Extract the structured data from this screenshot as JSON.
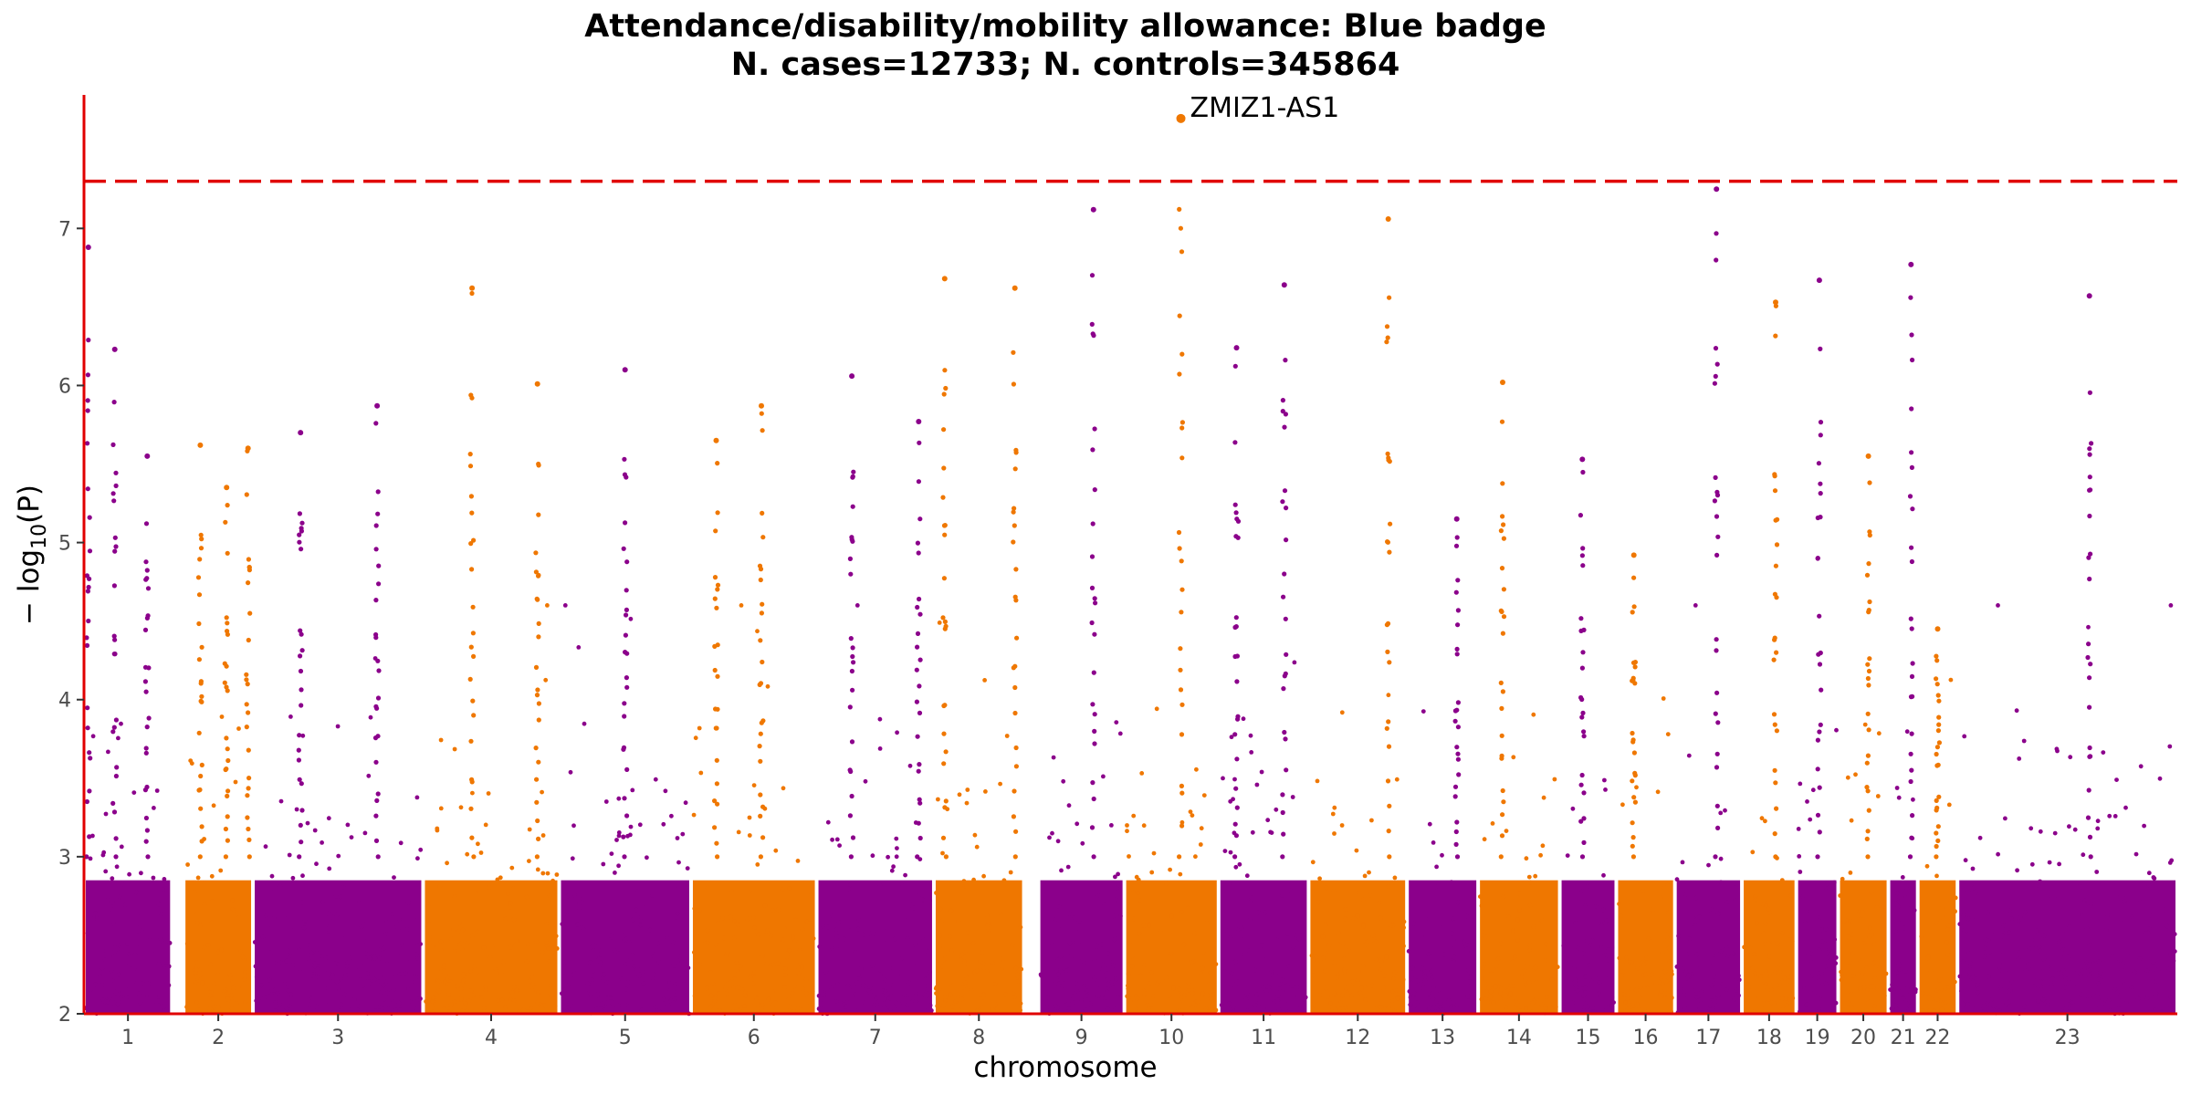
{
  "chart_data": {
    "type": "scatter",
    "subtype": "manhattan",
    "title": "Attendance/disability/mobility allowance: Blue badge",
    "subtitle": "N. cases=12733; N. controls=345864",
    "xlabel": "chromosome",
    "ylabel_main": "− log",
    "ylabel_sub": "10",
    "ylabel_tail": "(P)",
    "ylim": [
      2,
      7.85
    ],
    "y_ticks": [
      "2",
      "3",
      "4",
      "5",
      "6",
      "7"
    ],
    "threshold": 7.3,
    "series_colors": [
      "#8b008b",
      "#ef7700"
    ],
    "axis_color": "#e00000",
    "threshold_color": "#e00000",
    "chromosomes": [
      {
        "label": "1",
        "start": 0.0,
        "end": 0.042,
        "gap_end": 0.0476
      },
      {
        "label": "2",
        "start": 0.0476,
        "end": 0.0807,
        "gap_end": 0.0807
      },
      {
        "label": "3",
        "start": 0.0807,
        "end": 0.162,
        "gap_end": 0.162
      },
      {
        "label": "4",
        "start": 0.162,
        "end": 0.227,
        "gap_end": 0.227
      },
      {
        "label": "5",
        "start": 0.227,
        "end": 0.29,
        "gap_end": 0.29
      },
      {
        "label": "6",
        "start": 0.29,
        "end": 0.35,
        "gap_end": 0.35
      },
      {
        "label": "7",
        "start": 0.35,
        "end": 0.406,
        "gap_end": 0.406
      },
      {
        "label": "8",
        "start": 0.406,
        "end": 0.449,
        "gap_end": 0.456
      },
      {
        "label": "9",
        "start": 0.456,
        "end": 0.497,
        "gap_end": 0.497
      },
      {
        "label": "10",
        "start": 0.497,
        "end": 0.542,
        "gap_end": 0.542
      },
      {
        "label": "11",
        "start": 0.542,
        "end": 0.585,
        "gap_end": 0.585
      },
      {
        "label": "12",
        "start": 0.585,
        "end": 0.632,
        "gap_end": 0.632
      },
      {
        "label": "13",
        "start": 0.632,
        "end": 0.666,
        "gap_end": 0.666
      },
      {
        "label": "14",
        "start": 0.666,
        "end": 0.705,
        "gap_end": 0.705
      },
      {
        "label": "15",
        "start": 0.705,
        "end": 0.732,
        "gap_end": 0.732
      },
      {
        "label": "16",
        "start": 0.732,
        "end": 0.76,
        "gap_end": 0.76
      },
      {
        "label": "17",
        "start": 0.76,
        "end": 0.792,
        "gap_end": 0.792
      },
      {
        "label": "18",
        "start": 0.792,
        "end": 0.818,
        "gap_end": 0.818
      },
      {
        "label": "19",
        "start": 0.818,
        "end": 0.838,
        "gap_end": 0.838
      },
      {
        "label": "20",
        "start": 0.838,
        "end": 0.862,
        "gap_end": 0.862
      },
      {
        "label": "21",
        "start": 0.862,
        "end": 0.876,
        "gap_end": 0.876
      },
      {
        "label": "22",
        "start": 0.876,
        "end": 0.895,
        "gap_end": 0.895
      },
      {
        "label": "23",
        "start": 0.895,
        "end": 1.0,
        "gap_end": 1.0
      }
    ],
    "peaks": [
      {
        "chrom": "1",
        "pos": 0.05,
        "p": 6.88
      },
      {
        "chrom": "1",
        "pos": 0.35,
        "p": 6.23
      },
      {
        "chrom": "1",
        "pos": 0.72,
        "p": 5.55
      },
      {
        "chrom": "2",
        "pos": 0.24,
        "p": 5.62
      },
      {
        "chrom": "2",
        "pos": 0.62,
        "p": 5.35
      },
      {
        "chrom": "2",
        "pos": 0.93,
        "p": 5.6
      },
      {
        "chrom": "3",
        "pos": 0.28,
        "p": 5.7
      },
      {
        "chrom": "3",
        "pos": 0.73,
        "p": 5.87
      },
      {
        "chrom": "4",
        "pos": 0.36,
        "p": 6.62
      },
      {
        "chrom": "4",
        "pos": 0.84,
        "p": 6.01
      },
      {
        "chrom": "5",
        "pos": 0.5,
        "p": 6.1
      },
      {
        "chrom": "6",
        "pos": 0.2,
        "p": 5.65
      },
      {
        "chrom": "6",
        "pos": 0.56,
        "p": 5.87
      },
      {
        "chrom": "7",
        "pos": 0.3,
        "p": 6.06
      },
      {
        "chrom": "7",
        "pos": 0.87,
        "p": 5.77
      },
      {
        "chrom": "8",
        "pos": 0.12,
        "p": 6.68
      },
      {
        "chrom": "8",
        "pos": 0.9,
        "p": 6.62
      },
      {
        "chrom": "9",
        "pos": 0.64,
        "p": 7.12
      },
      {
        "chrom": "10",
        "pos": 0.6,
        "p": 7.7
      },
      {
        "chrom": "11",
        "pos": 0.2,
        "p": 6.24
      },
      {
        "chrom": "11",
        "pos": 0.73,
        "p": 6.64
      },
      {
        "chrom": "12",
        "pos": 0.81,
        "p": 7.06
      },
      {
        "chrom": "13",
        "pos": 0.7,
        "p": 5.15
      },
      {
        "chrom": "14",
        "pos": 0.3,
        "p": 6.02
      },
      {
        "chrom": "15",
        "pos": 0.4,
        "p": 5.53
      },
      {
        "chrom": "16",
        "pos": 0.3,
        "p": 4.92
      },
      {
        "chrom": "17",
        "pos": 0.62,
        "p": 7.25
      },
      {
        "chrom": "18",
        "pos": 0.62,
        "p": 6.53
      },
      {
        "chrom": "19",
        "pos": 0.55,
        "p": 6.67
      },
      {
        "chrom": "20",
        "pos": 0.6,
        "p": 5.55
      },
      {
        "chrom": "21",
        "pos": 0.77,
        "p": 6.77
      },
      {
        "chrom": "22",
        "pos": 0.5,
        "p": 4.45
      },
      {
        "chrom": "23",
        "pos": 0.6,
        "p": 6.57
      }
    ],
    "annotation": {
      "label": "ZMIZ1-AS1",
      "chrom": "10",
      "pos": 0.6,
      "p": 7.7,
      "color": "#ef7700"
    }
  }
}
